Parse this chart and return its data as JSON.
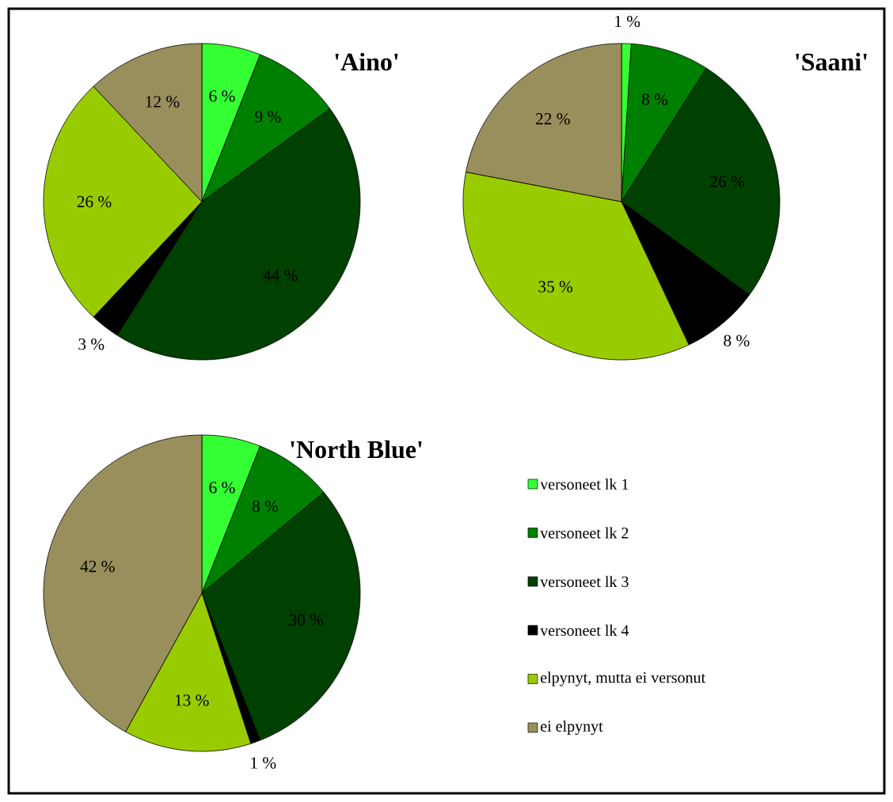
{
  "chart_data": [
    {
      "type": "pie",
      "title": "'Aino'",
      "categories": [
        "versoneet lk 1",
        "versoneet lk 2",
        "versoneet lk 3",
        "versoneet lk 4",
        "elpynyt, mutta ei versonut",
        "ei elpynyt"
      ],
      "values": [
        6,
        9,
        44,
        3,
        26,
        12
      ],
      "value_labels": [
        "6 %",
        "9 %",
        "44 %",
        "3 %",
        "26 %",
        "12 %"
      ],
      "colors": [
        "#33ff33",
        "#008000",
        "#004000",
        "#000000",
        "#99cc00",
        "#998f5c"
      ],
      "legend": "bottom right"
    },
    {
      "type": "pie",
      "title": "'Saani'",
      "categories": [
        null,
        null,
        null,
        null,
        null,
        null
      ],
      "values": [
        1,
        8,
        26,
        8,
        35,
        22
      ],
      "value_labels": [
        "1 %",
        "8 %",
        "26 %",
        "8 %",
        "35 %",
        "22 %"
      ],
      "colors": [
        "#33ff33",
        "#008000",
        "#004000",
        "#000000",
        "#99cc00",
        "#998f5c"
      ]
    },
    {
      "type": "pie",
      "title": "'North Blue'",
      "categories": [
        null,
        null,
        null,
        null,
        null,
        null
      ],
      "values": [
        6,
        8,
        30,
        1,
        13,
        42
      ],
      "value_labels": [
        "6 %",
        "8 %",
        "30 %",
        "1 %",
        "13 %",
        "42 %"
      ],
      "colors": [
        "#33ff33",
        "#008000",
        "#004000",
        "#000000",
        "#99cc00",
        "#998f5c"
      ]
    }
  ]
}
